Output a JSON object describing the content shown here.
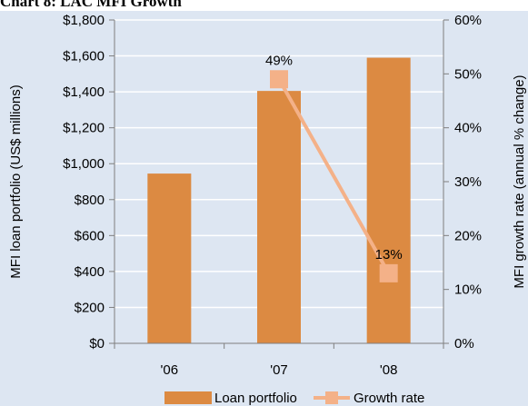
{
  "chart_data": {
    "type": "bar",
    "title": "Chart 8: LAC MFI Growth",
    "categories": [
      "'06",
      "'07",
      "'08"
    ],
    "series": [
      {
        "name": "Loan portfolio",
        "type": "bar",
        "axis": "left",
        "values": [
          945,
          1405,
          1590
        ],
        "color": "#dc8a42"
      },
      {
        "name": "Growth rate",
        "type": "line",
        "axis": "right",
        "values": [
          null,
          49,
          13
        ],
        "color": "#f4b188"
      }
    ],
    "data_labels": {
      "1": "49%",
      "2": "13%"
    },
    "ylabel_left": "MFI loan portfolio (US$ millions)",
    "ylabel_right": "MFI growth rate (annual % change)",
    "ylim_left": [
      0,
      1800
    ],
    "ylim_right": [
      0,
      60
    ],
    "yticks_left": [
      "$0",
      "$200",
      "$400",
      "$600",
      "$800",
      "$1,000",
      "$1,200",
      "$1,400",
      "$1,600",
      "$1,800"
    ],
    "yticks_right": [
      "0%",
      "10%",
      "20%",
      "30%",
      "40%",
      "50%",
      "60%"
    ],
    "grid": true,
    "legend_position": "bottom"
  }
}
